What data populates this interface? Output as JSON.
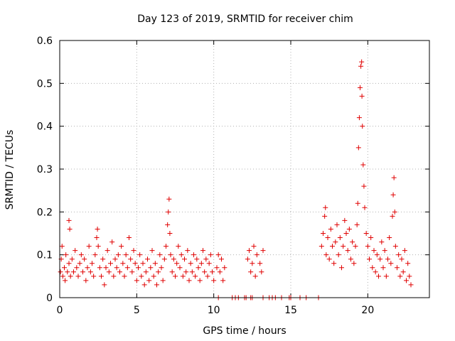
{
  "chart_data": {
    "type": "scatter",
    "title": "Day 123 of 2019, SRMTID for receiver chim",
    "xlabel": "GPS time / hours",
    "ylabel": "SRMTID / TECUs",
    "xlim": [
      0,
      24
    ],
    "ylim": [
      0,
      0.6
    ],
    "x_ticks": [
      0,
      5,
      10,
      15,
      20
    ],
    "x_tick_labels": [
      "0",
      "5",
      "10",
      "15",
      "20"
    ],
    "y_ticks": [
      0,
      0.1,
      0.2,
      0.3,
      0.4,
      0.5,
      0.6
    ],
    "y_tick_labels": [
      "0",
      "0.1",
      "0.2",
      "0.3",
      "0.4",
      "0.5",
      "0.6"
    ],
    "grid": true,
    "marker": "+",
    "color": "#e00000",
    "series": [
      {
        "name": "SRMTID",
        "points": [
          [
            0.05,
            0.06
          ],
          [
            0.1,
            0.09
          ],
          [
            0.15,
            0.12
          ],
          [
            0.2,
            0.05
          ],
          [
            0.3,
            0.07
          ],
          [
            0.35,
            0.04
          ],
          [
            0.4,
            0.1
          ],
          [
            0.5,
            0.06
          ],
          [
            0.6,
            0.08
          ],
          [
            0.6,
            0.18
          ],
          [
            0.65,
            0.16
          ],
          [
            0.7,
            0.05
          ],
          [
            0.8,
            0.09
          ],
          [
            0.9,
            0.06
          ],
          [
            1.0,
            0.11
          ],
          [
            1.1,
            0.07
          ],
          [
            1.2,
            0.05
          ],
          [
            1.3,
            0.08
          ],
          [
            1.4,
            0.1
          ],
          [
            1.5,
            0.06
          ],
          [
            1.6,
            0.09
          ],
          [
            1.7,
            0.04
          ],
          [
            1.8,
            0.07
          ],
          [
            1.9,
            0.12
          ],
          [
            2.0,
            0.06
          ],
          [
            2.1,
            0.08
          ],
          [
            2.2,
            0.05
          ],
          [
            2.3,
            0.1
          ],
          [
            2.4,
            0.14
          ],
          [
            2.45,
            0.16
          ],
          [
            2.5,
            0.12
          ],
          [
            2.6,
            0.07
          ],
          [
            2.7,
            0.05
          ],
          [
            2.8,
            0.09
          ],
          [
            2.9,
            0.03
          ],
          [
            3.0,
            0.07
          ],
          [
            3.1,
            0.11
          ],
          [
            3.2,
            0.06
          ],
          [
            3.3,
            0.08
          ],
          [
            3.4,
            0.13
          ],
          [
            3.5,
            0.05
          ],
          [
            3.6,
            0.09
          ],
          [
            3.7,
            0.07
          ],
          [
            3.8,
            0.1
          ],
          [
            3.9,
            0.06
          ],
          [
            4.0,
            0.12
          ],
          [
            4.1,
            0.08
          ],
          [
            4.2,
            0.05
          ],
          [
            4.3,
            0.1
          ],
          [
            4.4,
            0.07
          ],
          [
            4.5,
            0.14
          ],
          [
            4.6,
            0.09
          ],
          [
            4.7,
            0.06
          ],
          [
            4.8,
            0.11
          ],
          [
            4.9,
            0.08
          ],
          [
            5.0,
            0.04
          ],
          [
            5.1,
            0.07
          ],
          [
            5.2,
            0.1
          ],
          [
            5.3,
            0.05
          ],
          [
            5.4,
            0.08
          ],
          [
            5.5,
            0.03
          ],
          [
            5.6,
            0.06
          ],
          [
            5.7,
            0.09
          ],
          [
            5.8,
            0.04
          ],
          [
            5.9,
            0.07
          ],
          [
            6.0,
            0.11
          ],
          [
            6.1,
            0.05
          ],
          [
            6.2,
            0.08
          ],
          [
            6.3,
            0.03
          ],
          [
            6.4,
            0.06
          ],
          [
            6.5,
            0.1
          ],
          [
            6.6,
            0.07
          ],
          [
            6.7,
            0.04
          ],
          [
            6.8,
            0.09
          ],
          [
            6.9,
            0.12
          ],
          [
            7.0,
            0.17
          ],
          [
            7.05,
            0.2
          ],
          [
            7.1,
            0.23
          ],
          [
            7.15,
            0.15
          ],
          [
            7.2,
            0.1
          ],
          [
            7.3,
            0.06
          ],
          [
            7.4,
            0.09
          ],
          [
            7.5,
            0.05
          ],
          [
            7.6,
            0.08
          ],
          [
            7.7,
            0.12
          ],
          [
            7.8,
            0.07
          ],
          [
            7.9,
            0.1
          ],
          [
            8.0,
            0.05
          ],
          [
            8.1,
            0.09
          ],
          [
            8.2,
            0.06
          ],
          [
            8.3,
            0.11
          ],
          [
            8.4,
            0.04
          ],
          [
            8.5,
            0.08
          ],
          [
            8.6,
            0.06
          ],
          [
            8.7,
            0.1
          ],
          [
            8.8,
            0.05
          ],
          [
            8.9,
            0.09
          ],
          [
            9.0,
            0.07
          ],
          [
            9.1,
            0.04
          ],
          [
            9.2,
            0.08
          ],
          [
            9.3,
            0.11
          ],
          [
            9.4,
            0.06
          ],
          [
            9.5,
            0.09
          ],
          [
            9.6,
            0.05
          ],
          [
            9.7,
            0.08
          ],
          [
            9.8,
            0.1
          ],
          [
            9.9,
            0.06
          ],
          [
            10.0,
            0.04
          ],
          [
            10.2,
            0.07
          ],
          [
            10.3,
            0.1
          ],
          [
            10.4,
            0.06
          ],
          [
            10.5,
            0.09
          ],
          [
            10.6,
            0.04
          ],
          [
            10.7,
            0.07
          ],
          [
            12.2,
            0.09
          ],
          [
            12.3,
            0.11
          ],
          [
            12.4,
            0.06
          ],
          [
            12.5,
            0.08
          ],
          [
            12.6,
            0.12
          ],
          [
            12.7,
            0.05
          ],
          [
            12.8,
            0.1
          ],
          [
            13.0,
            0.08
          ],
          [
            13.1,
            0.06
          ],
          [
            13.2,
            0.11
          ],
          [
            10.3,
            0.0
          ],
          [
            11.2,
            0.0
          ],
          [
            11.4,
            0.0
          ],
          [
            11.6,
            0.0
          ],
          [
            12.0,
            0.0
          ],
          [
            12.1,
            0.0
          ],
          [
            12.4,
            0.0
          ],
          [
            12.5,
            0.0
          ],
          [
            13.2,
            0.0
          ],
          [
            13.6,
            0.0
          ],
          [
            13.8,
            0.0
          ],
          [
            14.0,
            0.0
          ],
          [
            14.4,
            0.0
          ],
          [
            14.9,
            0.0
          ],
          [
            15.0,
            0.0
          ],
          [
            15.6,
            0.0
          ],
          [
            16.0,
            0.0
          ],
          [
            16.8,
            0.0
          ],
          [
            17.0,
            0.12
          ],
          [
            17.1,
            0.15
          ],
          [
            17.2,
            0.19
          ],
          [
            17.25,
            0.21
          ],
          [
            17.3,
            0.1
          ],
          [
            17.4,
            0.14
          ],
          [
            17.5,
            0.09
          ],
          [
            17.6,
            0.16
          ],
          [
            17.7,
            0.12
          ],
          [
            17.8,
            0.08
          ],
          [
            17.9,
            0.13
          ],
          [
            18.0,
            0.17
          ],
          [
            18.1,
            0.1
          ],
          [
            18.2,
            0.14
          ],
          [
            18.3,
            0.07
          ],
          [
            18.4,
            0.12
          ],
          [
            18.5,
            0.18
          ],
          [
            18.6,
            0.15
          ],
          [
            18.7,
            0.11
          ],
          [
            18.8,
            0.16
          ],
          [
            18.9,
            0.09
          ],
          [
            19.0,
            0.13
          ],
          [
            19.1,
            0.08
          ],
          [
            19.2,
            0.12
          ],
          [
            19.3,
            0.17
          ],
          [
            19.35,
            0.22
          ],
          [
            19.4,
            0.35
          ],
          [
            19.45,
            0.42
          ],
          [
            19.5,
            0.49
          ],
          [
            19.55,
            0.54
          ],
          [
            19.6,
            0.55
          ],
          [
            19.62,
            0.47
          ],
          [
            19.65,
            0.4
          ],
          [
            19.7,
            0.31
          ],
          [
            19.75,
            0.26
          ],
          [
            19.8,
            0.21
          ],
          [
            19.9,
            0.15
          ],
          [
            20.0,
            0.12
          ],
          [
            20.1,
            0.09
          ],
          [
            20.2,
            0.14
          ],
          [
            20.3,
            0.07
          ],
          [
            20.4,
            0.11
          ],
          [
            20.5,
            0.06
          ],
          [
            20.6,
            0.1
          ],
          [
            20.7,
            0.05
          ],
          [
            20.8,
            0.09
          ],
          [
            20.9,
            0.13
          ],
          [
            21.0,
            0.07
          ],
          [
            21.1,
            0.11
          ],
          [
            21.2,
            0.05
          ],
          [
            21.3,
            0.09
          ],
          [
            21.4,
            0.14
          ],
          [
            21.5,
            0.08
          ],
          [
            21.6,
            0.19
          ],
          [
            21.65,
            0.24
          ],
          [
            21.7,
            0.28
          ],
          [
            21.75,
            0.2
          ],
          [
            21.8,
            0.12
          ],
          [
            21.9,
            0.07
          ],
          [
            22.0,
            0.1
          ],
          [
            22.1,
            0.05
          ],
          [
            22.2,
            0.09
          ],
          [
            22.3,
            0.06
          ],
          [
            22.4,
            0.11
          ],
          [
            22.5,
            0.04
          ],
          [
            22.6,
            0.08
          ],
          [
            22.7,
            0.05
          ],
          [
            22.8,
            0.03
          ]
        ]
      }
    ]
  }
}
